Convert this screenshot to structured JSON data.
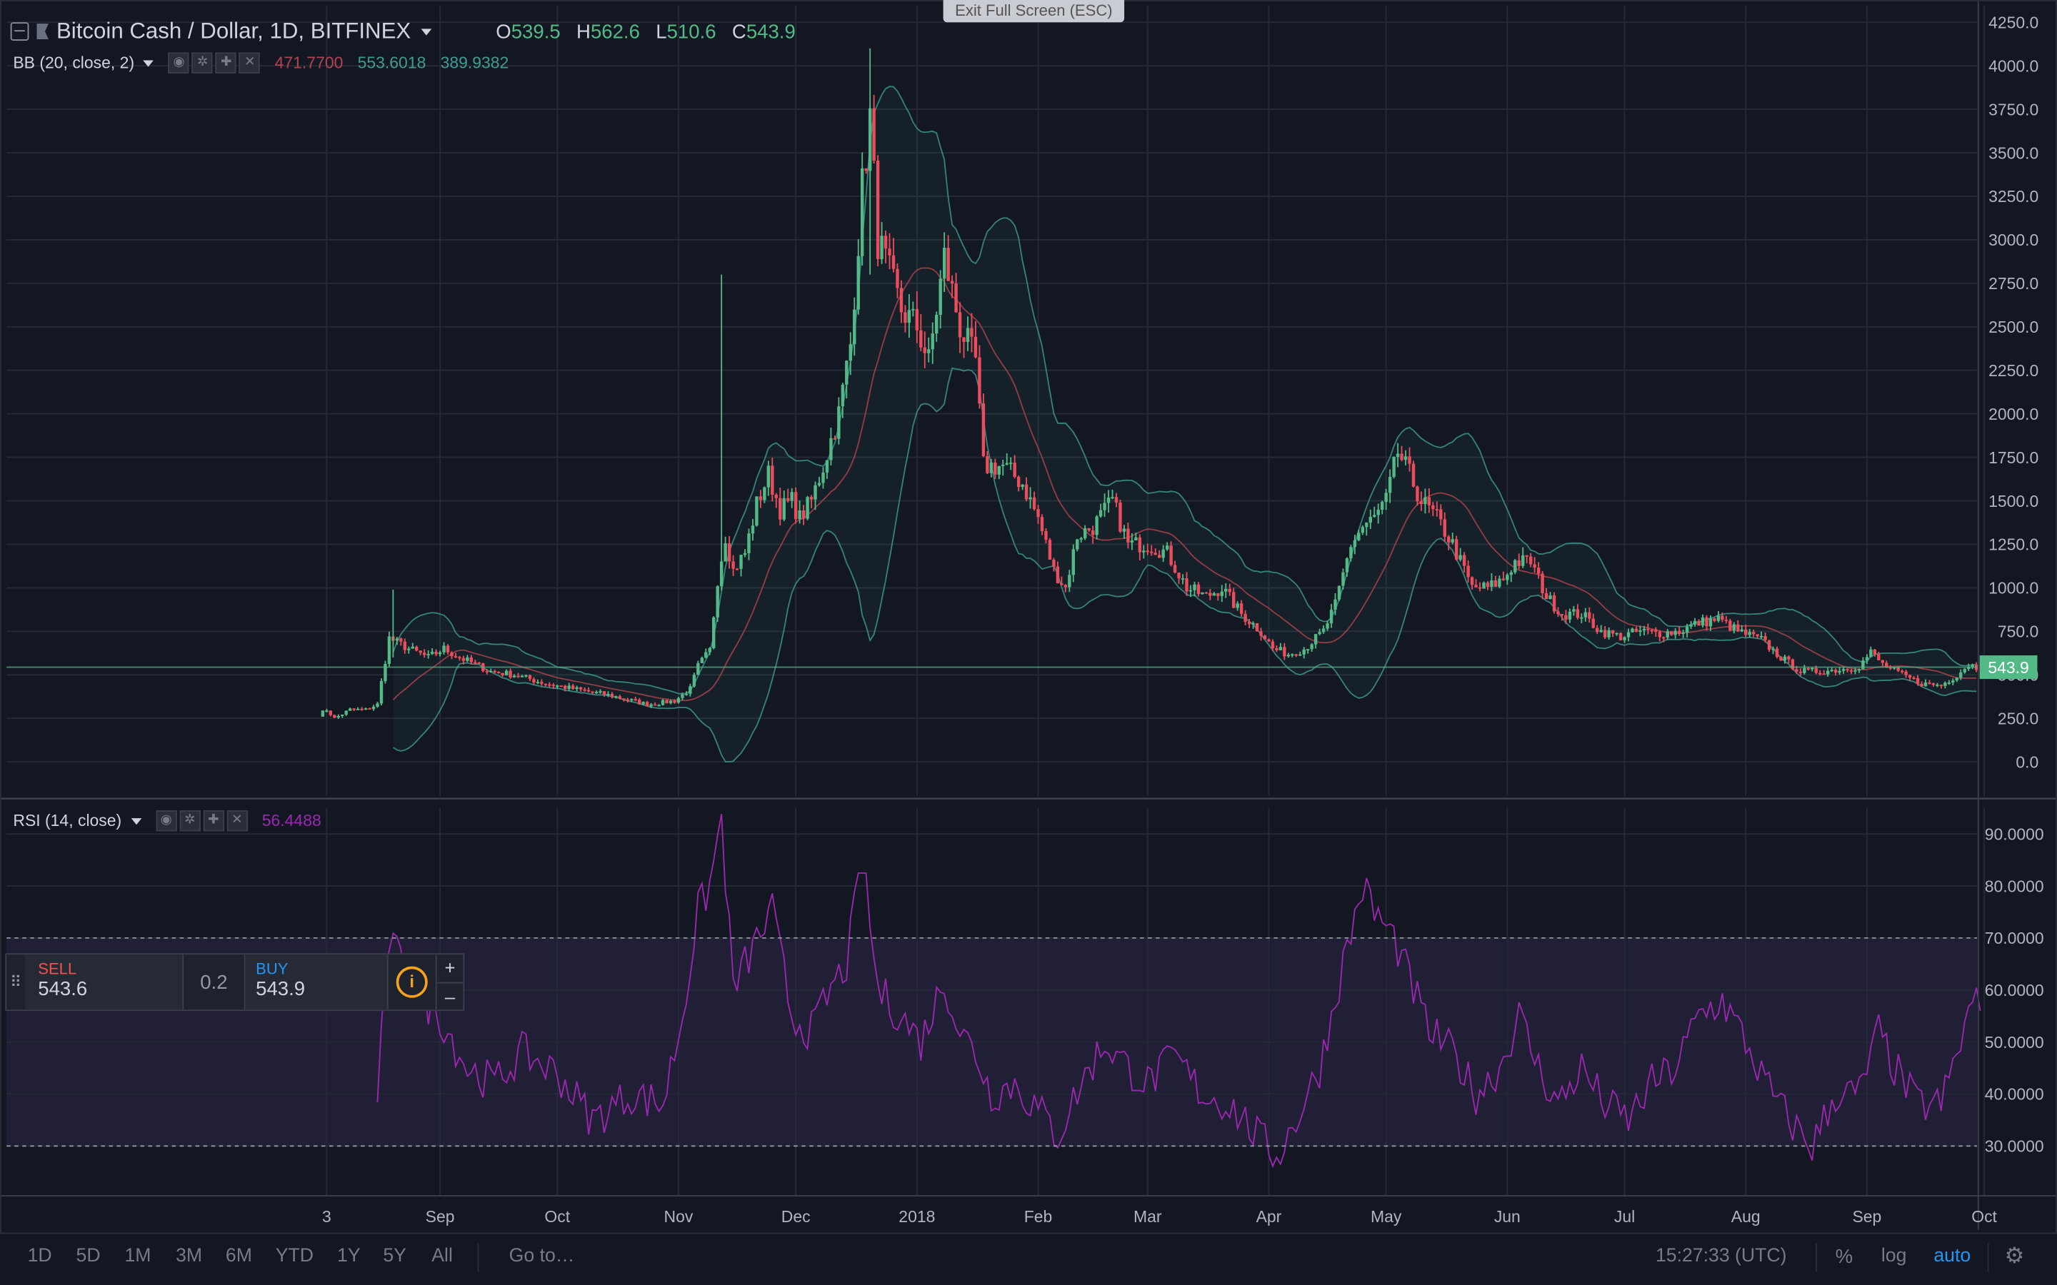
{
  "symbol": {
    "title": "Bitcoin Cash / Dollar, 1D, BITFINEX"
  },
  "ohlc": {
    "o_label": "O",
    "o": "539.5",
    "h_label": "H",
    "h": "562.6",
    "l_label": "L",
    "l": "510.6",
    "c_label": "C",
    "c": "543.9"
  },
  "fullscreen": {
    "label": "Exit Full Screen (ESC)"
  },
  "bb": {
    "name": "BB (20, close, 2)",
    "v1": "471.7700",
    "v2": "553.6018",
    "v3": "389.9382"
  },
  "rsi": {
    "name": "RSI (14, close)",
    "value": "56.4488"
  },
  "trade": {
    "sell_label": "SELL",
    "sell_price": "543.6",
    "spread": "0.2",
    "buy_label": "BUY",
    "buy_price": "543.9",
    "plus": "+",
    "minus": "–",
    "info": "i"
  },
  "price_axis": {
    "labels": [
      "4250.0",
      "4000.0",
      "3750.0",
      "3500.0",
      "3250.0",
      "3000.0",
      "2750.0",
      "2500.0",
      "2250.0",
      "2000.0",
      "1750.0",
      "1500.0",
      "1250.0",
      "1000.0",
      "750.0",
      "500.0",
      "250.0",
      "0.0"
    ],
    "last_price": "543.9"
  },
  "rsi_axis": {
    "labels": [
      "90.0000",
      "80.0000",
      "70.0000",
      "60.0000",
      "50.0000",
      "40.0000",
      "30.0000"
    ]
  },
  "time_axis": {
    "labels": [
      "3",
      "Sep",
      "Oct",
      "Nov",
      "Dec",
      "2018",
      "Feb",
      "Mar",
      "Apr",
      "May",
      "Jun",
      "Jul",
      "Aug",
      "Sep",
      "Oct"
    ]
  },
  "bottom": {
    "ranges": [
      "1D",
      "5D",
      "1M",
      "3M",
      "6M",
      "YTD",
      "1Y",
      "5Y",
      "All"
    ],
    "goto": "Go to…",
    "time": "15:27:33 (UTC)",
    "percent": "%",
    "log": "log",
    "auto": "auto"
  },
  "colors": {
    "up": "#53b987",
    "down": "#eb4d5c",
    "rsi": "#9c27b0",
    "bb": "#3f9c90",
    "accent": "#2196f3"
  },
  "chart_data": {
    "type": "candlestick",
    "price_ylim": [
      0,
      4250
    ],
    "price_anchors": [
      [
        "2017-08-01",
        270
      ],
      [
        "2017-08-03",
        300
      ],
      [
        "2017-08-05",
        250
      ],
      [
        "2017-08-09",
        300
      ],
      [
        "2017-08-13",
        300
      ],
      [
        "2017-08-16",
        330
      ],
      [
        "2017-08-19",
        710
      ],
      [
        "2017-08-24",
        650
      ],
      [
        "2017-08-29",
        600
      ],
      [
        "2017-09-02",
        650
      ],
      [
        "2017-09-06",
        600
      ],
      [
        "2017-09-10",
        560
      ],
      [
        "2017-09-14",
        520
      ],
      [
        "2017-09-20",
        500
      ],
      [
        "2017-09-28",
        450
      ],
      [
        "2017-10-05",
        420
      ],
      [
        "2017-10-15",
        380
      ],
      [
        "2017-10-24",
        330
      ],
      [
        "2017-10-31",
        350
      ],
      [
        "2017-11-04",
        420
      ],
      [
        "2017-11-06",
        550
      ],
      [
        "2017-11-09",
        640
      ],
      [
        "2017-11-11",
        1050
      ],
      [
        "2017-11-13",
        1300
      ],
      [
        "2017-11-15",
        1100
      ],
      [
        "2017-11-18",
        1200
      ],
      [
        "2017-11-21",
        1480
      ],
      [
        "2017-11-24",
        1650
      ],
      [
        "2017-11-27",
        1450
      ],
      [
        "2017-11-30",
        1500
      ],
      [
        "2017-12-02",
        1400
      ],
      [
        "2017-12-05",
        1500
      ],
      [
        "2017-12-08",
        1700
      ],
      [
        "2017-12-12",
        2000
      ],
      [
        "2017-12-15",
        2400
      ],
      [
        "2017-12-18",
        3300
      ],
      [
        "2017-12-20",
        3700
      ],
      [
        "2017-12-22",
        3000
      ],
      [
        "2017-12-25",
        2800
      ],
      [
        "2017-12-28",
        2600
      ],
      [
        "2018-01-01",
        2500
      ],
      [
        "2018-01-04",
        2300
      ],
      [
        "2018-01-08",
        2900
      ],
      [
        "2018-01-12",
        2500
      ],
      [
        "2018-01-16",
        2300
      ],
      [
        "2018-01-18",
        1700
      ],
      [
        "2018-01-23",
        1700
      ],
      [
        "2018-01-28",
        1600
      ],
      [
        "2018-02-01",
        1400
      ],
      [
        "2018-02-05",
        1100
      ],
      [
        "2018-02-08",
        1000
      ],
      [
        "2018-02-11",
        1300
      ],
      [
        "2018-02-15",
        1350
      ],
      [
        "2018-02-20",
        1500
      ],
      [
        "2018-02-24",
        1250
      ],
      [
        "2018-03-01",
        1250
      ],
      [
        "2018-03-06",
        1200
      ],
      [
        "2018-03-11",
        1000
      ],
      [
        "2018-03-16",
        950
      ],
      [
        "2018-03-20",
        1000
      ],
      [
        "2018-03-25",
        850
      ],
      [
        "2018-03-30",
        750
      ],
      [
        "2018-04-02",
        650
      ],
      [
        "2018-04-06",
        620
      ],
      [
        "2018-04-10",
        650
      ],
      [
        "2018-04-15",
        750
      ],
      [
        "2018-04-18",
        900
      ],
      [
        "2018-04-22",
        1250
      ],
      [
        "2018-04-25",
        1350
      ],
      [
        "2018-04-28",
        1400
      ],
      [
        "2018-05-01",
        1500
      ],
      [
        "2018-05-04",
        1780
      ],
      [
        "2018-05-07",
        1650
      ],
      [
        "2018-05-10",
        1500
      ],
      [
        "2018-05-14",
        1400
      ],
      [
        "2018-05-18",
        1250
      ],
      [
        "2018-05-23",
        1000
      ],
      [
        "2018-05-27",
        1000
      ],
      [
        "2018-05-31",
        1050
      ],
      [
        "2018-06-03",
        1150
      ],
      [
        "2018-06-07",
        1150
      ],
      [
        "2018-06-11",
        950
      ],
      [
        "2018-06-15",
        850
      ],
      [
        "2018-06-20",
        850
      ],
      [
        "2018-06-25",
        750
      ],
      [
        "2018-06-30",
        720
      ],
      [
        "2018-07-05",
        750
      ],
      [
        "2018-07-10",
        740
      ],
      [
        "2018-07-15",
        750
      ],
      [
        "2018-07-20",
        800
      ],
      [
        "2018-07-25",
        820
      ],
      [
        "2018-07-30",
        750
      ],
      [
        "2018-08-05",
        700
      ],
      [
        "2018-08-10",
        600
      ],
      [
        "2018-08-15",
        520
      ],
      [
        "2018-08-20",
        520
      ],
      [
        "2018-08-25",
        530
      ],
      [
        "2018-08-30",
        550
      ],
      [
        "2018-09-02",
        630
      ],
      [
        "2018-09-05",
        560
      ],
      [
        "2018-09-10",
        500
      ],
      [
        "2018-09-15",
        450
      ],
      [
        "2018-09-20",
        440
      ],
      [
        "2018-09-24",
        500
      ],
      [
        "2018-09-27",
        560
      ],
      [
        "2018-09-29",
        544
      ]
    ],
    "rsi_ylim": [
      20,
      100
    ],
    "rsi_levels": [
      70,
      30
    ],
    "rsi_anchors": [
      [
        "2017-08-16",
        40
      ],
      [
        "2017-08-19",
        70
      ],
      [
        "2017-08-25",
        60
      ],
      [
        "2017-09-01",
        55
      ],
      [
        "2017-09-08",
        45
      ],
      [
        "2017-09-15",
        42
      ],
      [
        "2017-09-22",
        48
      ],
      [
        "2017-10-01",
        44
      ],
      [
        "2017-10-10",
        35
      ],
      [
        "2017-10-20",
        40
      ],
      [
        "2017-10-28",
        38
      ],
      [
        "2017-11-02",
        55
      ],
      [
        "2017-11-06",
        75
      ],
      [
        "2017-11-09",
        80
      ],
      [
        "2017-11-12",
        93
      ],
      [
        "2017-11-15",
        60
      ],
      [
        "2017-11-20",
        68
      ],
      [
        "2017-11-25",
        75
      ],
      [
        "2017-11-30",
        55
      ],
      [
        "2017-12-05",
        52
      ],
      [
        "2017-12-10",
        60
      ],
      [
        "2017-12-14",
        65
      ],
      [
        "2017-12-18",
        85
      ],
      [
        "2017-12-22",
        60
      ],
      [
        "2017-12-28",
        55
      ],
      [
        "2018-01-02",
        50
      ],
      [
        "2018-01-08",
        62
      ],
      [
        "2018-01-12",
        52
      ],
      [
        "2018-01-16",
        48
      ],
      [
        "2018-01-20",
        40
      ],
      [
        "2018-01-26",
        42
      ],
      [
        "2018-02-02",
        36
      ],
      [
        "2018-02-06",
        32
      ],
      [
        "2018-02-12",
        42
      ],
      [
        "2018-02-18",
        50
      ],
      [
        "2018-02-24",
        45
      ],
      [
        "2018-03-01",
        42
      ],
      [
        "2018-03-08",
        47
      ],
      [
        "2018-03-15",
        40
      ],
      [
        "2018-03-22",
        38
      ],
      [
        "2018-03-29",
        32
      ],
      [
        "2018-04-03",
        28
      ],
      [
        "2018-04-08",
        35
      ],
      [
        "2018-04-14",
        45
      ],
      [
        "2018-04-20",
        65
      ],
      [
        "2018-04-25",
        80
      ],
      [
        "2018-04-28",
        75
      ],
      [
        "2018-05-03",
        70
      ],
      [
        "2018-05-07",
        62
      ],
      [
        "2018-05-12",
        52
      ],
      [
        "2018-05-18",
        48
      ],
      [
        "2018-05-24",
        40
      ],
      [
        "2018-05-30",
        45
      ],
      [
        "2018-06-04",
        55
      ],
      [
        "2018-06-09",
        45
      ],
      [
        "2018-06-14",
        38
      ],
      [
        "2018-06-20",
        45
      ],
      [
        "2018-06-26",
        38
      ],
      [
        "2018-07-02",
        35
      ],
      [
        "2018-07-08",
        42
      ],
      [
        "2018-07-14",
        45
      ],
      [
        "2018-07-20",
        55
      ],
      [
        "2018-07-26",
        58
      ],
      [
        "2018-08-01",
        50
      ],
      [
        "2018-08-06",
        42
      ],
      [
        "2018-08-12",
        35
      ],
      [
        "2018-08-18",
        30
      ],
      [
        "2018-08-24",
        40
      ],
      [
        "2018-08-30",
        40
      ],
      [
        "2018-09-04",
        52
      ],
      [
        "2018-09-08",
        45
      ],
      [
        "2018-09-14",
        38
      ],
      [
        "2018-09-20",
        38
      ],
      [
        "2018-09-25",
        50
      ],
      [
        "2018-09-28",
        58
      ],
      [
        "2018-09-30",
        56
      ]
    ]
  }
}
